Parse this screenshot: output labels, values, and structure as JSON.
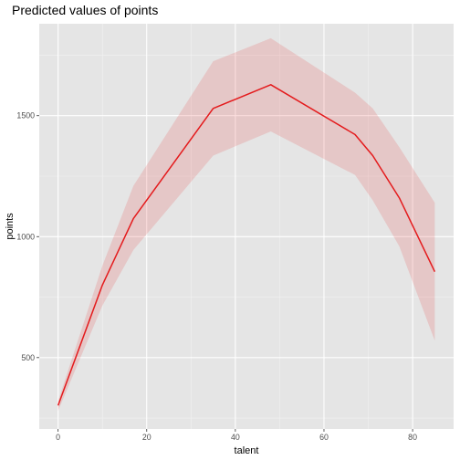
{
  "chart_data": {
    "type": "line",
    "title": "Predicted values of points",
    "xlabel": "talent",
    "ylabel": "points",
    "xlim": [
      -4.25,
      89.25
    ],
    "ylim": [
      205,
      1880
    ],
    "x_ticks": [
      0,
      20,
      40,
      60,
      80
    ],
    "x_tick_labels": [
      "0",
      "20",
      "40",
      "60",
      "80"
    ],
    "y_ticks": [
      500,
      1000,
      1500
    ],
    "y_tick_labels": [
      "500",
      "1000",
      "1500"
    ],
    "grid": true,
    "legend": "none",
    "colors": {
      "panel_background": "#e5e5e5",
      "grid_major": "#ffffff",
      "grid_minor": "#f2f2f2",
      "line": "#e41a1c",
      "ribbon": "#e41a1c",
      "ribbon_opacity": 0.15,
      "tick_mark": "#333333"
    },
    "series": [
      {
        "x": [
          0,
          10,
          17,
          35,
          48,
          67,
          71,
          77,
          85
        ],
        "y": [
          302,
          800,
          1075,
          1530,
          1628,
          1422,
          1335,
          1160,
          855
        ],
        "lower": [
          280,
          715,
          945,
          1335,
          1435,
          1255,
          1150,
          960,
          570
        ],
        "upper": [
          320,
          880,
          1210,
          1725,
          1820,
          1595,
          1530,
          1370,
          1140
        ]
      }
    ]
  }
}
